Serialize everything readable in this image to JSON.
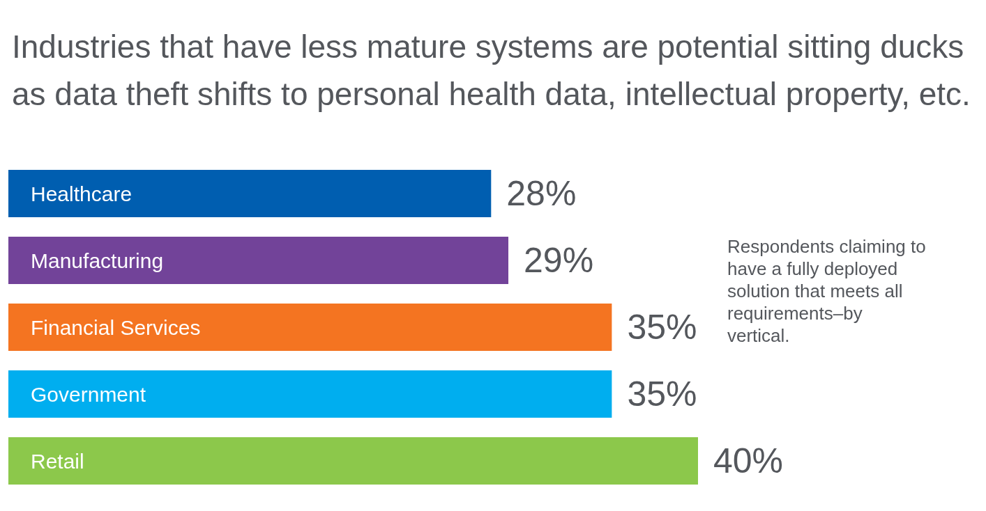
{
  "chart_data": {
    "type": "bar",
    "orientation": "horizontal",
    "title": "Industries that have less mature systems are potential sitting ducks as data theft shifts to personal health data, intellectual property, etc.",
    "categories": [
      "Healthcare",
      "Manufacturing",
      "Financial Services",
      "Government",
      "Retail"
    ],
    "values": [
      28,
      29,
      35,
      35,
      40
    ],
    "value_labels": [
      "28%",
      "29%",
      "35%",
      "35%",
      "40%"
    ],
    "colors": [
      "#005eb0",
      "#724399",
      "#f47421",
      "#00aeef",
      "#8cc84b"
    ],
    "annotations": [
      "Respondents claiming to have a fully deployed solution that meets all requirements–by vertical."
    ]
  }
}
